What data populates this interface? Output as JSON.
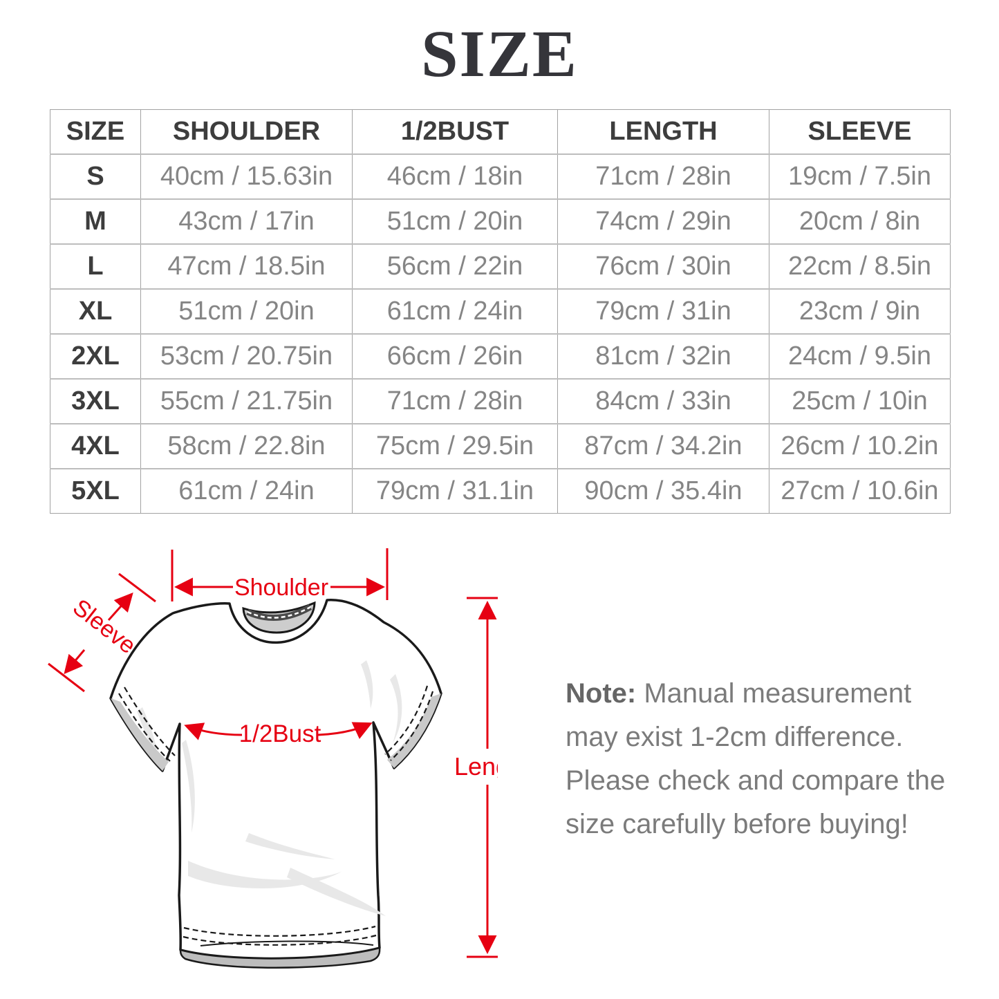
{
  "title": "SIZE",
  "table": {
    "headers": [
      "SIZE",
      "SHOULDER",
      "1/2BUST",
      "LENGTH",
      "SLEEVE"
    ],
    "rows": [
      [
        "S",
        "40cm / 15.63in",
        "46cm / 18in",
        "71cm / 28in",
        "19cm / 7.5in"
      ],
      [
        "M",
        "43cm / 17in",
        "51cm / 20in",
        "74cm / 29in",
        "20cm / 8in"
      ],
      [
        "L",
        "47cm / 18.5in",
        "56cm / 22in",
        "76cm / 30in",
        "22cm / 8.5in"
      ],
      [
        "XL",
        "51cm / 20in",
        "61cm / 24in",
        "79cm / 31in",
        "23cm / 9in"
      ],
      [
        "2XL",
        "53cm / 20.75in",
        "66cm / 26in",
        "81cm / 32in",
        "24cm / 9.5in"
      ],
      [
        "3XL",
        "55cm / 21.75in",
        "71cm / 28in",
        "84cm / 33in",
        "25cm / 10in"
      ],
      [
        "4XL",
        "58cm / 22.8in",
        "75cm / 29.5in",
        "87cm / 34.2in",
        "26cm / 10.2in"
      ],
      [
        "5XL",
        "61cm / 24in",
        "79cm / 31.1in",
        "90cm / 35.4in",
        "27cm / 10.6in"
      ]
    ]
  },
  "diagram": {
    "shoulder_label": "Shoulder",
    "sleeve_label": "Sleeve",
    "bust_label": "1/2Bust",
    "length_label": "Length",
    "annotation_color": "#e60012"
  },
  "note": {
    "label": "Note:",
    "text": " Manual measurement may exist 1-2cm difference. Please check and compare the size carefully before buying!"
  }
}
